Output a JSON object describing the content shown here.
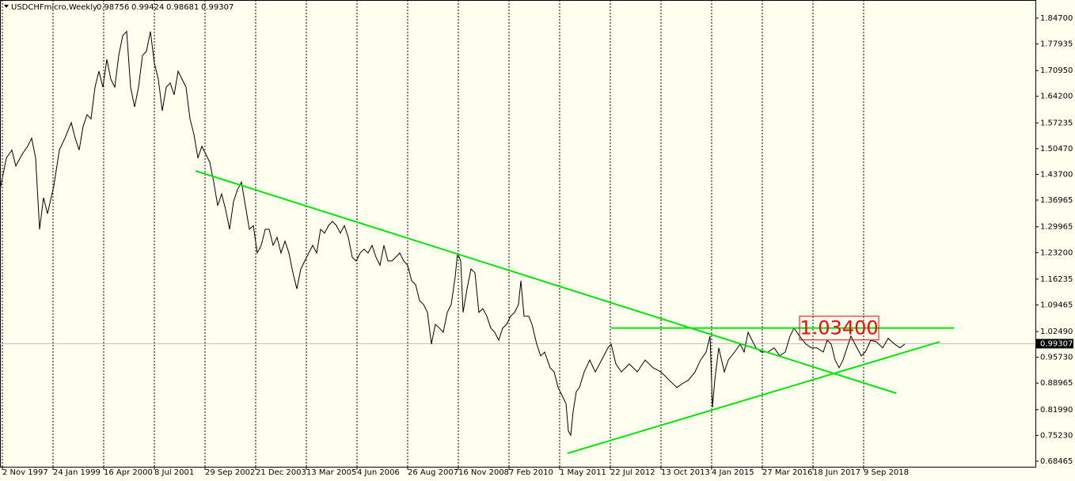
{
  "chart_data": {
    "type": "line",
    "title": "USDCHFmicro,Weekly",
    "ohlc": [
      0.98756,
      0.99424,
      0.98681,
      0.99307
    ],
    "color": "#000000",
    "last_price": 0.99307,
    "xlim": [
      0,
      1308
    ],
    "ylim": [
      0.6701,
      1.8947
    ],
    "xticks": [
      {
        "value": 3,
        "label": "2 Nov 1997"
      },
      {
        "value": 67,
        "label": "24 Jan 1999"
      },
      {
        "value": 131,
        "label": "16 Apr 2000"
      },
      {
        "value": 195,
        "label": "8 Jul 2001"
      },
      {
        "value": 259,
        "label": "29 Sep 2002"
      },
      {
        "value": 323,
        "label": "21 Dec 2003"
      },
      {
        "value": 387,
        "label": "13 Mar 2005"
      },
      {
        "value": 451,
        "label": "4 Jun 2006"
      },
      {
        "value": 515,
        "label": "26 Aug 2007"
      },
      {
        "value": 579,
        "label": "16 Nov 2008"
      },
      {
        "value": 643,
        "label": "7 Feb 2010"
      },
      {
        "value": 707,
        "label": "1 May 2011"
      },
      {
        "value": 771,
        "label": "22 Jul 2012"
      },
      {
        "value": 835,
        "label": "13 Oct 2013"
      },
      {
        "value": 899,
        "label": "4 Jan 2015"
      },
      {
        "value": 963,
        "label": "27 Mar 2016"
      },
      {
        "value": 1027,
        "label": "18 Jun 2017"
      },
      {
        "value": 1091,
        "label": "9 Sep 2018"
      }
    ],
    "yticks": [
      {
        "value": 1.847,
        "label": "1.84700"
      },
      {
        "value": 1.77935,
        "label": "1.77935"
      },
      {
        "value": 1.7095,
        "label": "1.70950"
      },
      {
        "value": 1.642,
        "label": "1.64200"
      },
      {
        "value": 1.57235,
        "label": "1.57235"
      },
      {
        "value": 1.5047,
        "label": "1.50470"
      },
      {
        "value": 1.437,
        "label": "1.43700"
      },
      {
        "value": 1.36965,
        "label": "1.36965"
      },
      {
        "value": 1.29965,
        "label": "1.29965"
      },
      {
        "value": 1.232,
        "label": "1.23200"
      },
      {
        "value": 1.16235,
        "label": "1.16235"
      },
      {
        "value": 1.09465,
        "label": "1.09465"
      },
      {
        "value": 1.0249,
        "label": "1.02490"
      },
      {
        "value": 0.9573,
        "label": "0.95730"
      },
      {
        "value": 0.88965,
        "label": "0.88965"
      },
      {
        "value": 0.8199,
        "label": "0.81990"
      },
      {
        "value": 0.7523,
        "label": "0.75230"
      },
      {
        "value": 0.68465,
        "label": "0.68465"
      }
    ],
    "grid": true,
    "x": [
      0,
      8,
      15,
      20,
      28,
      35,
      40,
      45,
      50,
      55,
      60,
      68,
      75,
      82,
      90,
      95,
      100,
      105,
      110,
      115,
      120,
      125,
      130,
      135,
      140,
      145,
      150,
      155,
      160,
      165,
      170,
      175,
      180,
      185,
      190,
      195,
      200,
      205,
      210,
      215,
      220,
      225,
      230,
      235,
      240,
      245,
      250,
      255,
      260,
      265,
      270,
      275,
      280,
      285,
      290,
      295,
      300,
      305,
      310,
      315,
      320,
      325,
      330,
      335,
      340,
      345,
      350,
      355,
      360,
      365,
      370,
      375,
      380,
      385,
      390,
      395,
      400,
      405,
      410,
      415,
      420,
      425,
      430,
      435,
      440,
      445,
      450,
      455,
      460,
      465,
      470,
      475,
      480,
      485,
      490,
      495,
      500,
      505,
      510,
      515,
      520,
      525,
      530,
      535,
      540,
      545,
      550,
      555,
      560,
      565,
      570,
      575,
      578,
      582,
      585,
      590,
      595,
      600,
      605,
      610,
      615,
      620,
      625,
      630,
      635,
      640,
      645,
      650,
      655,
      658,
      662,
      668,
      672,
      678,
      683,
      688,
      695,
      700,
      705,
      710,
      715,
      718,
      721,
      724,
      728,
      732,
      738,
      745,
      752,
      760,
      768,
      772,
      778,
      785,
      795,
      805,
      815,
      825,
      835,
      845,
      855,
      862,
      870,
      878,
      885,
      892,
      897,
      900,
      903,
      908,
      915,
      920,
      928,
      935,
      940,
      945,
      950,
      955,
      962,
      970,
      978,
      985,
      992,
      998,
      1003,
      1010,
      1018,
      1025,
      1032,
      1040,
      1045,
      1050,
      1055,
      1060,
      1065,
      1070,
      1075,
      1080,
      1088,
      1093,
      1100,
      1107,
      1115,
      1122,
      1130,
      1137,
      1143
    ],
    "values": [
      1.397,
      1.48,
      1.501,
      1.459,
      1.49,
      1.511,
      1.532,
      1.48,
      1.293,
      1.376,
      1.334,
      1.407,
      1.501,
      1.532,
      1.573,
      1.532,
      1.501,
      1.563,
      1.594,
      1.583,
      1.666,
      1.708,
      1.666,
      1.739,
      1.687,
      1.666,
      1.749,
      1.801,
      1.812,
      1.666,
      1.614,
      1.666,
      1.749,
      1.76,
      1.812,
      1.729,
      1.687,
      1.604,
      1.666,
      1.677,
      1.646,
      1.708,
      1.687,
      1.666,
      1.583,
      1.542,
      1.48,
      1.511,
      1.49,
      1.469,
      1.417,
      1.355,
      1.386,
      1.345,
      1.293,
      1.366,
      1.397,
      1.417,
      1.355,
      1.293,
      1.303,
      1.231,
      1.251,
      1.293,
      1.293,
      1.251,
      1.272,
      1.231,
      1.262,
      1.231,
      1.179,
      1.137,
      1.189,
      1.21,
      1.231,
      1.251,
      1.231,
      1.293,
      1.283,
      1.303,
      1.314,
      1.303,
      1.283,
      1.303,
      1.272,
      1.22,
      1.21,
      1.231,
      1.241,
      1.231,
      1.251,
      1.22,
      1.199,
      1.251,
      1.21,
      1.21,
      1.22,
      1.231,
      1.21,
      1.199,
      1.158,
      1.148,
      1.106,
      1.096,
      1.075,
      0.992,
      1.044,
      1.034,
      1.023,
      1.075,
      1.096,
      1.168,
      1.231,
      1.21,
      1.075,
      1.137,
      1.189,
      1.179,
      1.075,
      1.085,
      1.065,
      1.034,
      1.023,
      1.002,
      1.034,
      1.044,
      1.065,
      1.075,
      1.096,
      1.158,
      1.065,
      1.065,
      1.044,
      0.992,
      0.961,
      0.971,
      0.93,
      0.919,
      0.878,
      0.857,
      0.836,
      0.764,
      0.753,
      0.815,
      0.867,
      0.878,
      0.919,
      0.95,
      0.919,
      0.95,
      0.982,
      0.992,
      0.94,
      0.919,
      0.94,
      0.919,
      0.95,
      0.93,
      0.919,
      0.898,
      0.878,
      0.888,
      0.898,
      0.919,
      0.95,
      0.971,
      1.013,
      0.826,
      0.898,
      0.982,
      0.919,
      0.95,
      0.971,
      0.992,
      0.971,
      1.023,
      1.002,
      0.982,
      0.971,
      0.971,
      0.982,
      0.961,
      0.971,
      1.013,
      1.034,
      1.013,
      0.992,
      0.982,
      0.982,
      0.971,
      1.002,
      0.992,
      0.95,
      0.93,
      0.95,
      0.982,
      1.013,
      0.992,
      0.961,
      0.971,
      1.002,
      0.998,
      0.982,
      1.007,
      0.992,
      0.982,
      0.992
    ],
    "trendlines": [
      {
        "x": [
          247,
          1132
        ],
        "y": [
          1.4464,
          0.8631
        ]
      },
      {
        "x": [
          717,
          1187
        ],
        "y": [
          0.7054,
          0.998
        ]
      }
    ],
    "level": {
      "value": 1.034,
      "label": "1.03400",
      "x": [
        772,
        1205
      ]
    },
    "trend_color": "#00e600"
  }
}
